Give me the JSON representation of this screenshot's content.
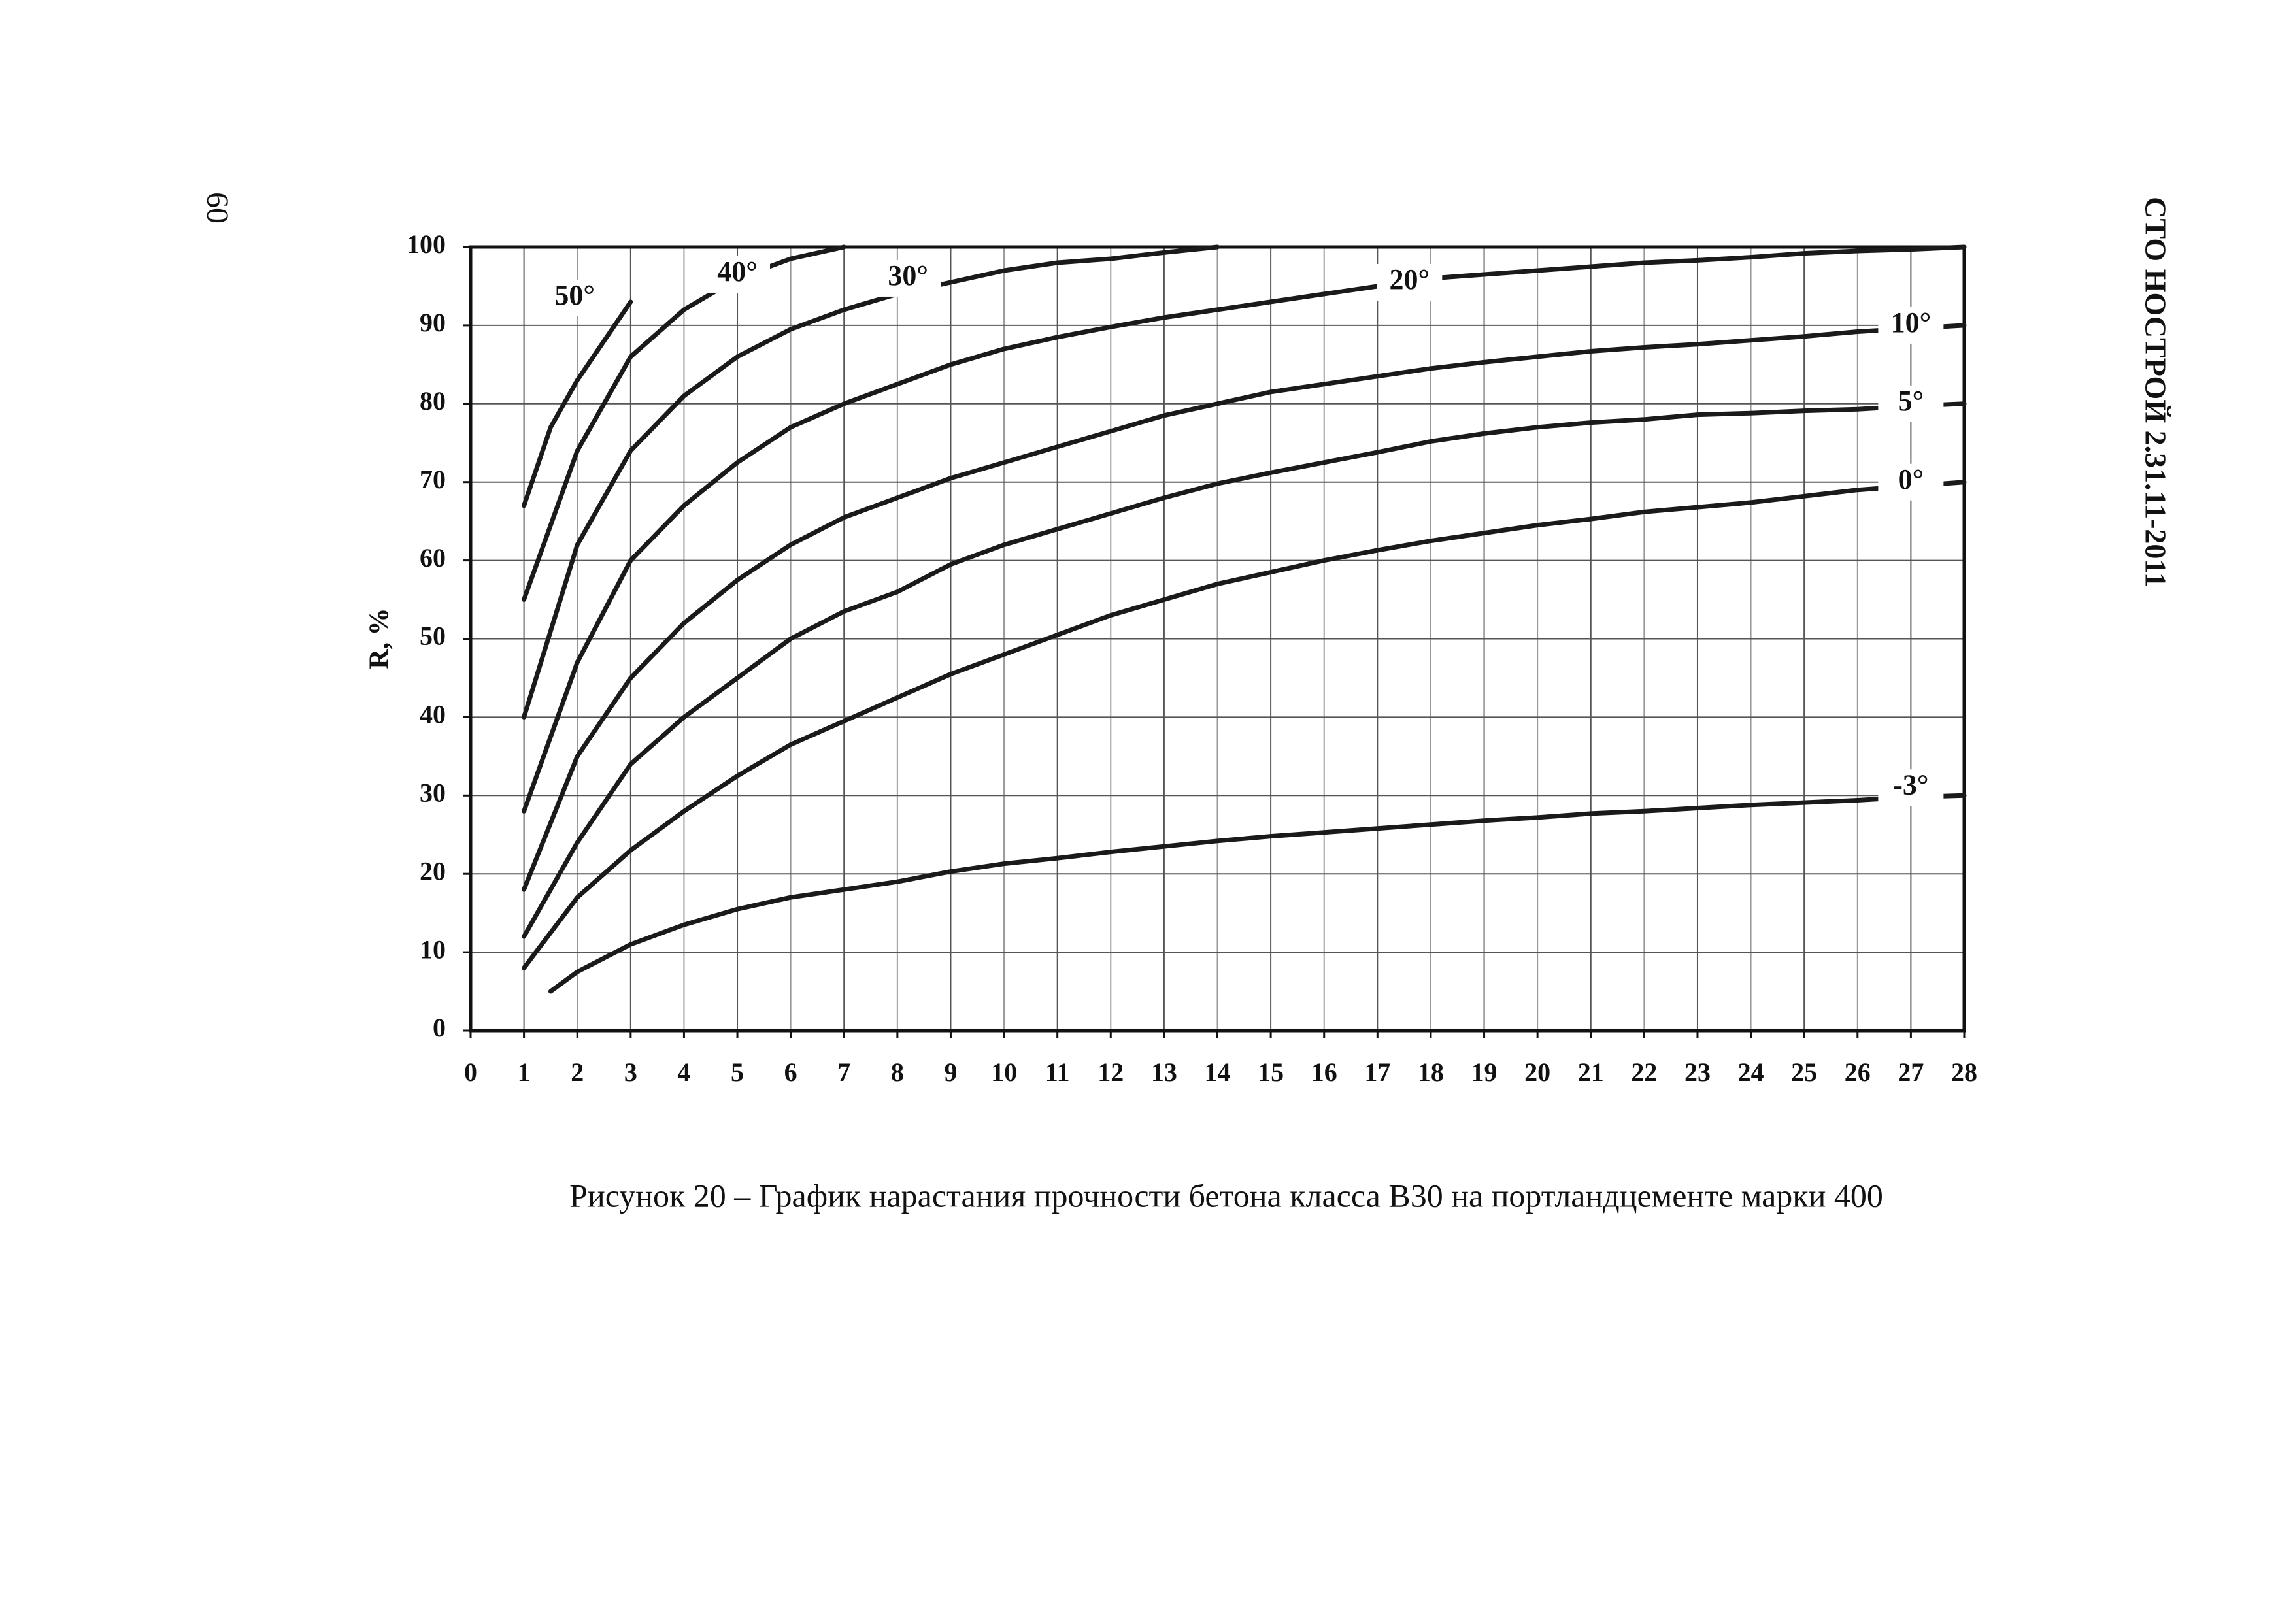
{
  "page_number": "60",
  "header": "СТО НОСТРОЙ 2.31.11-2011",
  "caption": "Рисунок 20 – График нарастания прочности бетона класса В30 на портландцементе марки 400",
  "chart_data": {
    "type": "line",
    "ylabel": "R, %",
    "xlim": [
      0,
      28
    ],
    "ylim": [
      0,
      100
    ],
    "xticks": [
      0,
      1,
      2,
      3,
      4,
      5,
      6,
      7,
      8,
      9,
      10,
      11,
      12,
      13,
      14,
      15,
      16,
      17,
      18,
      19,
      20,
      21,
      22,
      23,
      24,
      25,
      26,
      27,
      28
    ],
    "yticks": [
      0,
      10,
      20,
      30,
      40,
      50,
      60,
      70,
      80,
      90,
      100
    ],
    "grid": true,
    "series": [
      {
        "name": "50°",
        "color": "#1a1a1a",
        "x": [
          1,
          1.5,
          2,
          2.5,
          3
        ],
        "values": [
          67,
          77,
          83,
          88,
          93
        ]
      },
      {
        "name": "40°",
        "color": "#1a1a1a",
        "x": [
          1,
          2,
          3,
          4,
          5,
          6,
          7
        ],
        "values": [
          55,
          74,
          86,
          92,
          96,
          98.5,
          100
        ]
      },
      {
        "name": "30°",
        "color": "#1a1a1a",
        "x": [
          1,
          2,
          3,
          4,
          5,
          6,
          7,
          8,
          9,
          10,
          11,
          12,
          13,
          14
        ],
        "values": [
          40,
          62,
          74,
          81,
          86,
          89.5,
          92,
          94,
          95.5,
          97,
          98,
          98.5,
          99.3,
          100
        ]
      },
      {
        "name": "20°",
        "color": "#1a1a1a",
        "x": [
          1,
          2,
          3,
          4,
          5,
          6,
          7,
          8,
          9,
          10,
          11,
          12,
          13,
          14,
          15,
          16,
          17,
          18,
          19,
          20,
          21,
          22,
          23,
          24,
          25,
          26,
          27,
          28
        ],
        "values": [
          28,
          47,
          60,
          67,
          72.5,
          77,
          80,
          82.5,
          85,
          87,
          88.5,
          89.8,
          91,
          92,
          93,
          94,
          95,
          96,
          96.5,
          97,
          97.5,
          98,
          98.3,
          98.7,
          99.2,
          99.5,
          99.7,
          100
        ]
      },
      {
        "name": "10°",
        "color": "#1a1a1a",
        "x": [
          1,
          2,
          3,
          4,
          5,
          6,
          7,
          8,
          9,
          10,
          11,
          12,
          13,
          14,
          15,
          16,
          17,
          18,
          19,
          20,
          21,
          22,
          23,
          24,
          25,
          26,
          27,
          28
        ],
        "values": [
          18,
          35,
          45,
          52,
          57.5,
          62,
          65.5,
          68,
          70.5,
          72.5,
          74.5,
          76.5,
          78.5,
          80,
          81.5,
          82.5,
          83.5,
          84.5,
          85.3,
          86,
          86.7,
          87.2,
          87.6,
          88.1,
          88.6,
          89.2,
          89.6,
          90
        ]
      },
      {
        "name": "5°",
        "color": "#1a1a1a",
        "x": [
          1,
          2,
          3,
          4,
          5,
          6,
          7,
          8,
          9,
          10,
          11,
          12,
          13,
          14,
          15,
          16,
          17,
          18,
          19,
          20,
          21,
          22,
          23,
          24,
          25,
          26,
          27,
          28
        ],
        "values": [
          12,
          24,
          34,
          40,
          45,
          50,
          53.5,
          56,
          59.5,
          62,
          64,
          66,
          68,
          69.8,
          71.2,
          72.5,
          73.8,
          75.2,
          76.2,
          77,
          77.6,
          78,
          78.6,
          78.8,
          79.1,
          79.3,
          79.7,
          80
        ]
      },
      {
        "name": "0°",
        "color": "#1a1a1a",
        "x": [
          1,
          2,
          3,
          4,
          5,
          6,
          7,
          8,
          9,
          10,
          11,
          12,
          13,
          14,
          15,
          16,
          17,
          18,
          19,
          20,
          21,
          22,
          23,
          24,
          25,
          26,
          27,
          28
        ],
        "values": [
          8,
          17,
          23,
          28,
          32.5,
          36.5,
          39.5,
          42.5,
          45.5,
          48,
          50.5,
          53,
          55,
          57,
          58.5,
          60,
          61.3,
          62.5,
          63.5,
          64.5,
          65.3,
          66.2,
          66.8,
          67.4,
          68.2,
          69,
          69.5,
          70
        ]
      },
      {
        "name": "-3°",
        "color": "#1a1a1a",
        "x": [
          1.5,
          2,
          3,
          4,
          5,
          6,
          7,
          8,
          9,
          10,
          11,
          12,
          13,
          14,
          15,
          16,
          17,
          18,
          19,
          20,
          21,
          22,
          23,
          24,
          25,
          26,
          27,
          28
        ],
        "values": [
          5,
          7.5,
          11,
          13.5,
          15.5,
          17,
          18,
          19,
          20.3,
          21.3,
          22,
          22.8,
          23.5,
          24.2,
          24.8,
          25.3,
          25.8,
          26.3,
          26.8,
          27.2,
          27.7,
          28,
          28.4,
          28.8,
          29.1,
          29.4,
          29.8,
          30
        ]
      }
    ]
  }
}
